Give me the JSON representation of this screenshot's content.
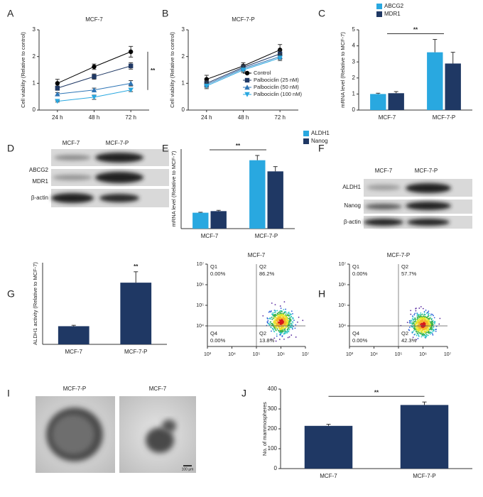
{
  "panel_labels": [
    "A",
    "B",
    "C",
    "D",
    "E",
    "F",
    "G",
    "H",
    "I",
    "J"
  ],
  "chart_data": [
    {
      "type": "line",
      "title": "MCF-7",
      "categories": [
        "24 h",
        "48 h",
        "72 h"
      ],
      "y_label": "Cell viability (Relative to control)",
      "ylim": [
        0,
        3
      ],
      "yticks": [
        0,
        1,
        2,
        3
      ],
      "significance": "**",
      "series": [
        {
          "color": "#000000",
          "marker": "circle",
          "values": [
            1.0,
            1.62,
            2.18
          ],
          "errors": [
            0.15,
            0.1,
            0.2
          ]
        },
        {
          "color": "#1f3864",
          "marker": "square",
          "values": [
            0.82,
            1.25,
            1.65
          ],
          "errors": [
            0.08,
            0.1,
            0.12
          ]
        },
        {
          "color": "#2e75b6",
          "marker": "triangle",
          "values": [
            0.6,
            0.75,
            1.0
          ],
          "errors": [
            0.05,
            0.07,
            0.1
          ]
        },
        {
          "color": "#29a8e0",
          "marker": "triangle-down",
          "values": [
            0.33,
            0.48,
            0.75
          ],
          "errors": [
            0.03,
            0.08,
            0.06
          ]
        }
      ]
    },
    {
      "type": "line",
      "title": "MCF-7-P",
      "categories": [
        "24 h",
        "48 h",
        "72 h"
      ],
      "y_label": "Cell viability (Relative to control)",
      "ylim": [
        0,
        3
      ],
      "yticks": [
        0,
        1,
        2,
        3
      ],
      "legend": "lower right",
      "series": [
        {
          "name": "Control",
          "color": "#000000",
          "marker": "circle",
          "values": [
            1.15,
            1.65,
            2.25
          ],
          "errors": [
            0.15,
            0.12,
            0.2
          ]
        },
        {
          "name": "Palbociclin (25 nM)",
          "color": "#1f3864",
          "marker": "square",
          "values": [
            1.0,
            1.6,
            2.1
          ],
          "errors": [
            0.1,
            0.1,
            0.15
          ]
        },
        {
          "name": "Palbociclin (50 nM)",
          "color": "#2e75b6",
          "marker": "triangle",
          "values": [
            0.95,
            1.55,
            2.0
          ],
          "errors": [
            0.1,
            0.1,
            0.1
          ]
        },
        {
          "name": "Palbociclin (100 nM)",
          "color": "#29a8e0",
          "marker": "triangle-down",
          "values": [
            0.9,
            1.5,
            1.95
          ],
          "errors": [
            0.1,
            0.1,
            0.1
          ]
        }
      ]
    },
    {
      "type": "bar",
      "categories": [
        "MCF-7",
        "MCF-7-P"
      ],
      "y_label": "mRNA level (Relative to MCF-7)",
      "ylim": [
        0,
        5
      ],
      "yticks": [
        0,
        1,
        2,
        3,
        4,
        5
      ],
      "significance": "**",
      "legend": "top",
      "series": [
        {
          "name": "ABCG2",
          "color": "#29a8e0",
          "values": [
            1.0,
            3.6
          ],
          "errors": [
            0.05,
            0.8
          ]
        },
        {
          "name": "MDR1",
          "color": "#1f3864",
          "values": [
            1.05,
            2.9
          ],
          "errors": [
            0.1,
            0.7
          ]
        }
      ]
    },
    {
      "type": "bar",
      "categories": [
        "MCF-7",
        "MCF-7-P"
      ],
      "y_label": "mRNA level (Relative to MCF-7)",
      "ylim": [
        0,
        5
      ],
      "significance": "**",
      "legend": "right",
      "series": [
        {
          "name": "ALDH1",
          "color": "#29a8e0",
          "values": [
            1.0,
            4.3
          ],
          "errors": [
            0.03,
            0.3
          ]
        },
        {
          "name": "Nanog",
          "color": "#1f3864",
          "values": [
            1.1,
            3.6
          ],
          "errors": [
            0.05,
            0.3
          ]
        }
      ]
    },
    {
      "type": "bar",
      "categories": [
        "MCF-7",
        "MCF-7-P"
      ],
      "y_label": "ALDH1 activity (Relative to MCF-7)",
      "ylim": [
        0,
        4.5
      ],
      "significance": "**",
      "series": [
        {
          "color": "#1f3864",
          "values": [
            1.0,
            3.4
          ],
          "errors": [
            0.05,
            0.6
          ]
        }
      ]
    },
    {
      "type": "flow",
      "title": "MCF-7",
      "log_scale": true,
      "xlim": [
        1000,
        10000000
      ],
      "ylim": [
        1000,
        10000000
      ],
      "xticks": [
        {
          "value": 1000,
          "label": "10³"
        },
        {
          "value": 10000,
          "label": "10⁴"
        },
        {
          "value": 100000,
          "label": "10⁵"
        },
        {
          "value": 1000000,
          "label": "10⁶"
        },
        {
          "value": 10000000,
          "label": "10⁷"
        }
      ],
      "yticks": [
        {
          "value": 10000,
          "label": "10⁴"
        },
        {
          "value": 100000,
          "label": "10⁵"
        },
        {
          "value": 1000000,
          "label": "10⁶"
        },
        {
          "value": 10000000,
          "label": "10⁷"
        }
      ],
      "quadrant_x": 100000,
      "quadrant_y": 10000,
      "quadrants": [
        {
          "name": "Q1",
          "percent": "0.00%"
        },
        {
          "name": "Q2",
          "percent": "86.2%"
        },
        {
          "name": "Q4",
          "percent": "0.00%"
        },
        {
          "name": "Q2",
          "percent": "13.8%"
        }
      ]
    },
    {
      "type": "flow",
      "title": "MCF-7-P",
      "log_scale": true,
      "xlim": [
        1000,
        10000000
      ],
      "ylim": [
        1000,
        10000000
      ],
      "xticks": [
        {
          "value": 1000,
          "label": "10³"
        },
        {
          "value": 10000,
          "label": "10⁴"
        },
        {
          "value": 100000,
          "label": "10⁵"
        },
        {
          "value": 1000000,
          "label": "10⁶"
        },
        {
          "value": 10000000,
          "label": "10⁷"
        }
      ],
      "yticks": [
        {
          "value": 10000,
          "label": "10⁴"
        },
        {
          "value": 100000,
          "label": "10⁵"
        },
        {
          "value": 1000000,
          "label": "10⁶"
        },
        {
          "value": 10000000,
          "label": "10⁷"
        }
      ],
      "quadrant_x": 100000,
      "quadrant_y": 10000,
      "quadrants": [
        {
          "name": "Q1",
          "percent": "0.00%"
        },
        {
          "name": "Q2",
          "percent": "57.7%"
        },
        {
          "name": "Q4",
          "percent": "0.00%"
        },
        {
          "name": "Q2",
          "percent": "42.3%"
        }
      ]
    },
    {
      "type": "bar",
      "categories": [
        "MCF-7",
        "MCF-7-P"
      ],
      "y_label": "No. of mammospheres",
      "ylim": [
        0,
        400
      ],
      "yticks": [
        0,
        100,
        200,
        300,
        400
      ],
      "significance": "**",
      "series": [
        {
          "color": "#1f3864",
          "values": [
            215,
            320
          ],
          "errors": [
            8,
            15
          ]
        }
      ]
    }
  ],
  "blots": [
    {
      "columns": [
        "MCF-7",
        "MCF-7-P"
      ],
      "rows": [
        "ABCG2",
        "MDR1",
        "β-actin"
      ]
    },
    {
      "columns": [
        "MCF-7",
        "MCF-7-P"
      ],
      "rows": [
        "ALDH1",
        "Nanog",
        "β-actin"
      ]
    }
  ],
  "images": {
    "labels": [
      "MCF-7-P",
      "MCF-7"
    ],
    "scale_bar": "100 μm"
  }
}
